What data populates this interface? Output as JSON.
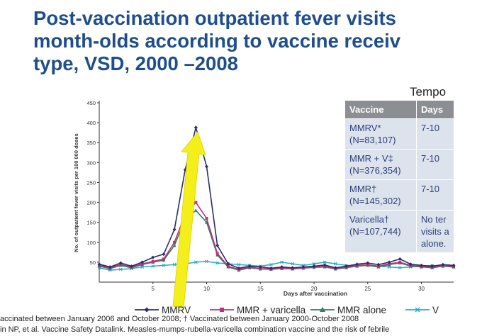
{
  "title_lines": [
    "Post-vaccination outpatient fever visits",
    "month-olds according to vaccine receiv",
    "type, VSD, 2000 –2008"
  ],
  "chart_data": {
    "type": "line",
    "xlabel": "Days after vaccination",
    "ylabel": "No. of outpatient fever visits per 100 000 doses",
    "xlim": [
      0,
      33
    ],
    "ylim": [
      0,
      450
    ],
    "x_ticks": [
      5,
      10,
      15,
      20,
      25,
      30
    ],
    "y_ticks": [
      50,
      100,
      150,
      200,
      250,
      300,
      350,
      400,
      450
    ],
    "legend_position": "bottom",
    "x": [
      0,
      1,
      2,
      3,
      4,
      5,
      6,
      7,
      8,
      9,
      10,
      11,
      12,
      13,
      14,
      15,
      16,
      17,
      18,
      19,
      20,
      21,
      22,
      23,
      24,
      25,
      26,
      27,
      28,
      29,
      30,
      31,
      32,
      33
    ],
    "series": [
      {
        "name": "MMRV",
        "color": "#2b2c6b",
        "marker": "diamond",
        "values": [
          45,
          38,
          48,
          40,
          50,
          62,
          70,
          132,
          282,
          388,
          290,
          92,
          46,
          35,
          40,
          38,
          35,
          38,
          36,
          38,
          40,
          43,
          36,
          40,
          45,
          48,
          44,
          50,
          58,
          45,
          42,
          40,
          44,
          42
        ]
      },
      {
        "name": "MMR + varicella",
        "color": "#c0307a",
        "marker": "square",
        "values": [
          42,
          36,
          44,
          38,
          46,
          52,
          58,
          100,
          170,
          200,
          160,
          72,
          40,
          32,
          38,
          34,
          33,
          36,
          34,
          36,
          38,
          40,
          34,
          38,
          42,
          44,
          40,
          46,
          50,
          42,
          40,
          38,
          42,
          40
        ]
      },
      {
        "name": "MMR alone",
        "color": "#2e7d5b",
        "marker": "triangle",
        "values": [
          40,
          34,
          42,
          36,
          44,
          50,
          55,
          92,
          158,
          180,
          150,
          68,
          38,
          30,
          36,
          33,
          32,
          34,
          33,
          35,
          37,
          38,
          33,
          36,
          40,
          42,
          38,
          44,
          48,
          40,
          38,
          36,
          40,
          38
        ]
      },
      {
        "name": "Varicella",
        "color": "#2aa9c9",
        "marker": "x",
        "values": [
          36,
          30,
          32,
          34,
          38,
          40,
          42,
          44,
          46,
          50,
          52,
          48,
          46,
          44,
          42,
          40,
          44,
          50,
          46,
          42,
          46,
          50,
          46,
          42,
          40,
          44,
          40,
          38,
          36,
          38,
          40,
          42,
          40,
          38
        ]
      }
    ],
    "legend_labels": [
      "MMRV",
      "MMR + varicella",
      "MMR alone",
      "V"
    ],
    "annotation": "yellow arrow pointing to MMRV peak"
  },
  "table": {
    "title": "Tempo",
    "headers": [
      "Vaccine",
      "Days"
    ],
    "rows": [
      {
        "vaccine": "MMRV*",
        "n": "(N=83,107)",
        "days": "7-10"
      },
      {
        "vaccine": "MMR + V‡",
        "n": "(N=376,354)",
        "days": "7-10"
      },
      {
        "vaccine": "MMR†",
        "n": "(N=145,302)",
        "days": "7-10"
      },
      {
        "vaccine": "Varicella†",
        "n": "(N=107,744)",
        "days": "No ter visits a alone."
      }
    ],
    "varicella_days_lines": [
      "No ter",
      "visits a",
      "alone."
    ]
  },
  "footnotes": [
    "accinated between January 2006 and October 2008; † Vaccinated between January 2000-October 2008",
    "in NP, et al. Vaccine Safety Datalink. Measles-mumps-rubella-varicella combination vaccine and the risk of febrile"
  ],
  "colors": {
    "title": "#1f4e8c",
    "table_header": "#8b8e92",
    "table_cell": "#dde3ec",
    "table_text": "#2b3f78",
    "arrow": "#f4ee1a"
  }
}
